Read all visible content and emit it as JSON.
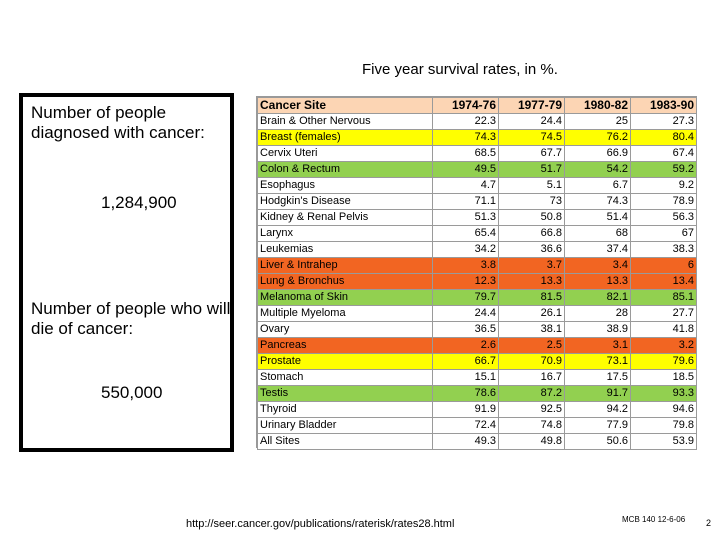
{
  "title": "Five year survival rates, in %.",
  "left_panel": {
    "diagnosed_label": "Number of people diagnosed with cancer:",
    "diagnosed_value": "1,284,900",
    "die_label": "Number of people who will die of cancer:",
    "die_value": "550,000"
  },
  "table": {
    "columns": [
      "Cancer Site",
      "1974-76",
      "1977-79",
      "1980-82",
      "1983-90"
    ],
    "header_color": "#fcd5b4",
    "rows": [
      {
        "site": "Brain & Other Nervous",
        "values": [
          "22.3",
          "24.4",
          "25",
          "27.3"
        ],
        "color": "#ffffff"
      },
      {
        "site": "Breast (females)",
        "values": [
          "74.3",
          "74.5",
          "76.2",
          "80.4"
        ],
        "color": "#ffff00"
      },
      {
        "site": "Cervix Uteri",
        "values": [
          "68.5",
          "67.7",
          "66.9",
          "67.4"
        ],
        "color": "#ffffff"
      },
      {
        "site": "Colon & Rectum",
        "values": [
          "49.5",
          "51.7",
          "54.2",
          "59.2"
        ],
        "color": "#92d050"
      },
      {
        "site": "Esophagus",
        "values": [
          "4.7",
          "5.1",
          "6.7",
          "9.2"
        ],
        "color": "#ffffff"
      },
      {
        "site": "Hodgkin's Disease",
        "values": [
          "71.1",
          "73",
          "74.3",
          "78.9"
        ],
        "color": "#ffffff"
      },
      {
        "site": "Kidney & Renal Pelvis",
        "values": [
          "51.3",
          "50.8",
          "51.4",
          "56.3"
        ],
        "color": "#ffffff"
      },
      {
        "site": "Larynx",
        "values": [
          "65.4",
          "66.8",
          "68",
          "67"
        ],
        "color": "#ffffff"
      },
      {
        "site": "Leukemias",
        "values": [
          "34.2",
          "36.6",
          "37.4",
          "38.3"
        ],
        "color": "#ffffff"
      },
      {
        "site": "Liver & Intrahep",
        "values": [
          "3.8",
          "3.7",
          "3.4",
          "6"
        ],
        "color": "#f26522"
      },
      {
        "site": "Lung & Bronchus",
        "values": [
          "12.3",
          "13.3",
          "13.3",
          "13.4"
        ],
        "color": "#f26522"
      },
      {
        "site": "Melanoma of Skin",
        "values": [
          "79.7",
          "81.5",
          "82.1",
          "85.1"
        ],
        "color": "#92d050"
      },
      {
        "site": "Multiple Myeloma",
        "values": [
          "24.4",
          "26.1",
          "28",
          "27.7"
        ],
        "color": "#ffffff"
      },
      {
        "site": "Ovary",
        "values": [
          "36.5",
          "38.1",
          "38.9",
          "41.8"
        ],
        "color": "#ffffff"
      },
      {
        "site": "Pancreas",
        "values": [
          "2.6",
          "2.5",
          "3.1",
          "3.2"
        ],
        "color": "#f26522"
      },
      {
        "site": "Prostate",
        "values": [
          "66.7",
          "70.9",
          "73.1",
          "79.6"
        ],
        "color": "#ffff00"
      },
      {
        "site": "Stomach",
        "values": [
          "15.1",
          "16.7",
          "17.5",
          "18.5"
        ],
        "color": "#ffffff"
      },
      {
        "site": "Testis",
        "values": [
          "78.6",
          "87.2",
          "91.7",
          "93.3"
        ],
        "color": "#92d050"
      },
      {
        "site": "Thyroid",
        "values": [
          "91.9",
          "92.5",
          "94.2",
          "94.6"
        ],
        "color": "#ffffff"
      },
      {
        "site": "Urinary Bladder",
        "values": [
          "72.4",
          "74.8",
          "77.9",
          "79.8"
        ],
        "color": "#ffffff"
      },
      {
        "site": "All Sites",
        "values": [
          "49.3",
          "49.8",
          "50.6",
          "53.9"
        ],
        "color": "#ffffff"
      }
    ]
  },
  "footer": {
    "url": "http://seer.cancer.gov/publications/raterisk/rates28.html",
    "code": "MCB 140 12-6-06",
    "page": "2"
  }
}
